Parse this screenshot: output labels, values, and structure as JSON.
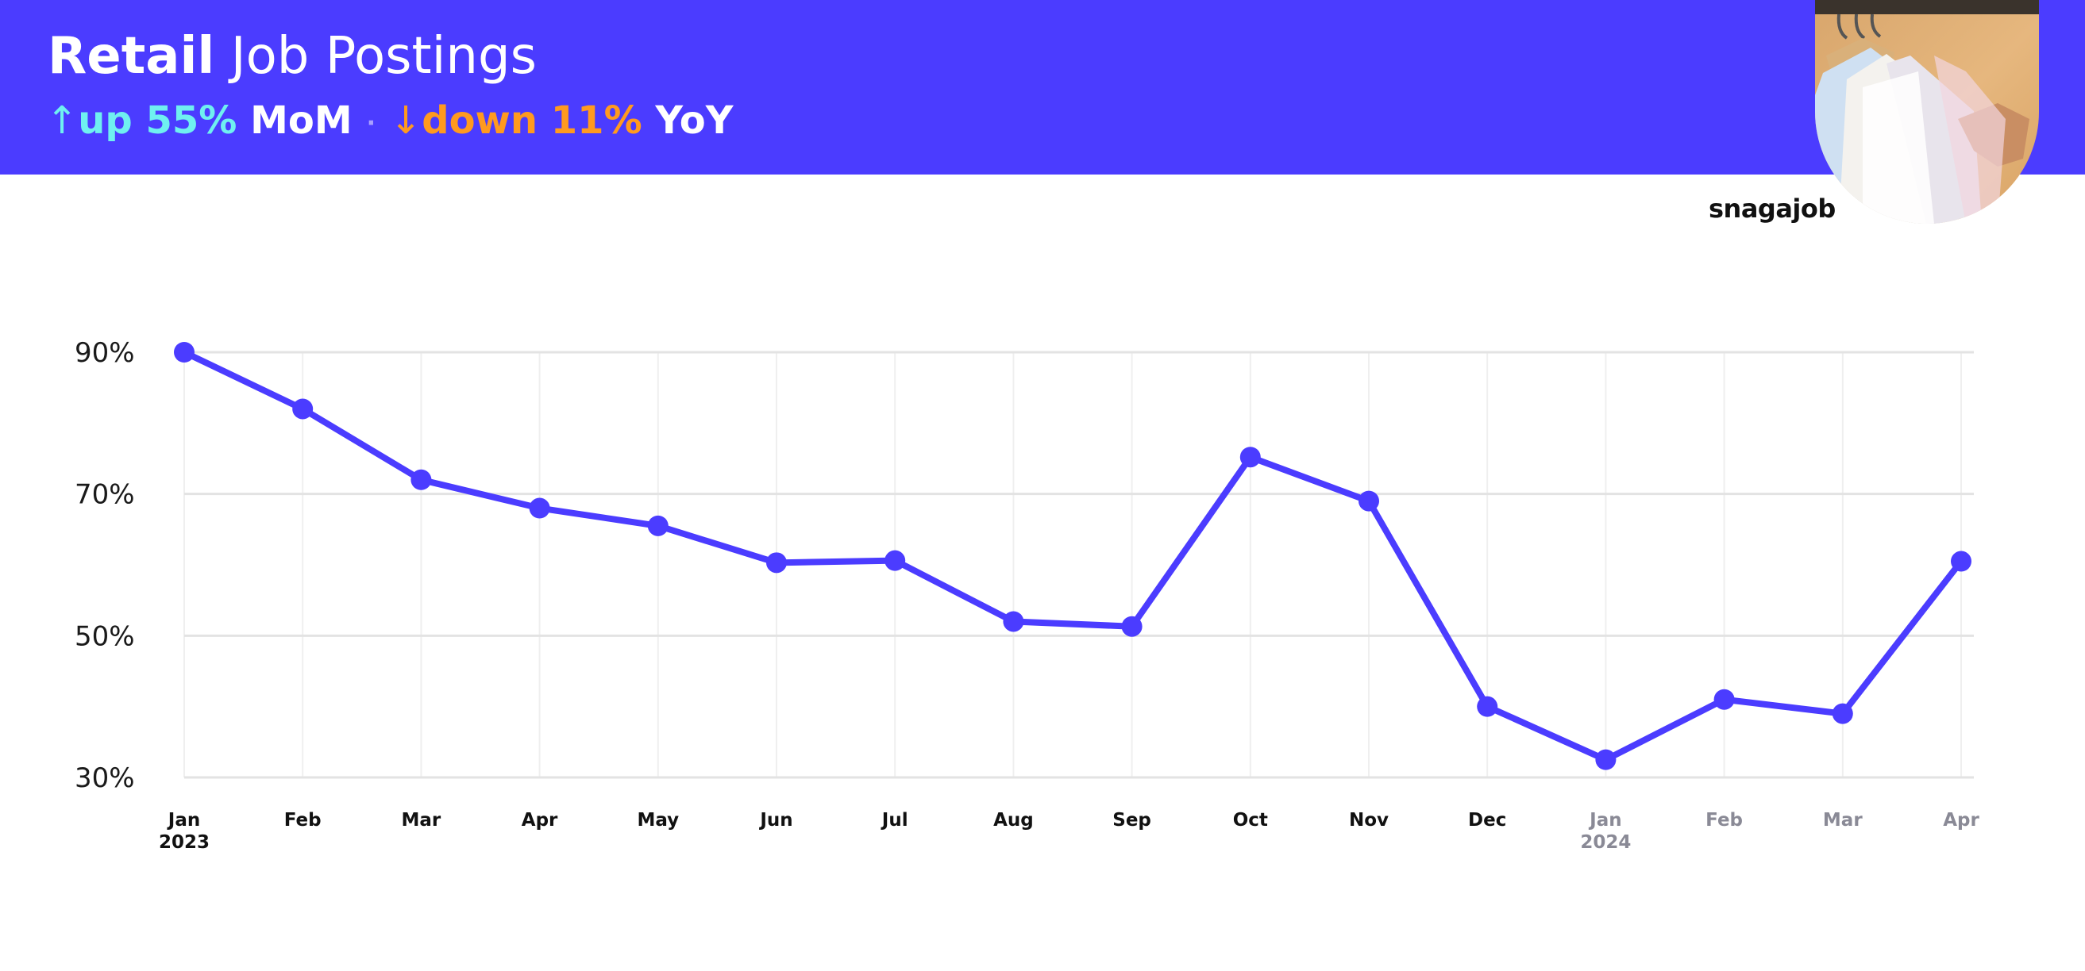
{
  "header": {
    "title_strong": "Retail",
    "title_rest": " Job Postings",
    "mom_arrow": "↑",
    "mom_value": "up 55%",
    "mom_label": " MoM",
    "separator": "·",
    "yoy_arrow": "↓",
    "yoy_value": "down 11%",
    "yoy_label": " YoY",
    "brand": "snagajob",
    "colors": {
      "background": "#4b3cff",
      "up": "#6ff0f0",
      "down": "#ff9a1f"
    }
  },
  "chart_data": {
    "type": "line",
    "title": "Retail Job Postings",
    "categories": [
      "Jan",
      "Feb",
      "Mar",
      "Apr",
      "May",
      "Jun",
      "Jul",
      "Aug",
      "Sep",
      "Oct",
      "Nov",
      "Dec",
      "Jan",
      "Feb",
      "Mar",
      "Apr"
    ],
    "years": [
      "2023",
      "",
      "",
      "",
      "",
      "",
      "",
      "",
      "",
      "",
      "",
      "",
      "2024",
      "",
      "",
      ""
    ],
    "muted": [
      false,
      false,
      false,
      false,
      false,
      false,
      false,
      false,
      false,
      false,
      false,
      false,
      true,
      true,
      true,
      true
    ],
    "series": [
      {
        "values": [
          90,
          82,
          72,
          68,
          65.5,
          60.3,
          60.6,
          52,
          51.3,
          75.2,
          69,
          40,
          32.5,
          41,
          39,
          60.5
        ]
      }
    ],
    "ylim": [
      30,
      90
    ],
    "yticks": [
      30,
      50,
      70,
      90
    ],
    "ytick_labels": [
      "30%",
      "50%",
      "70%",
      "90%"
    ],
    "grid": true,
    "line_color": "#4b3cff"
  }
}
